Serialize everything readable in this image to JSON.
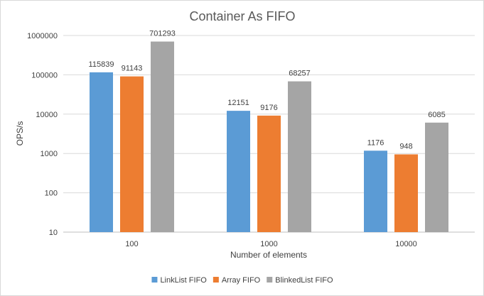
{
  "chart_data": {
    "type": "bar",
    "title": "Container As FIFO",
    "xlabel": "Number  of elements",
    "ylabel": "OPS/s",
    "yscale": "log",
    "ylim": [
      10,
      1000000
    ],
    "yticks": [
      "10",
      "100",
      "1000",
      "10000",
      "100000",
      "1000000"
    ],
    "categories": [
      "100",
      "1000",
      "10000"
    ],
    "series": [
      {
        "name": "LinkList FIFO",
        "color": "#5b9bd5",
        "values": [
          115839,
          12151,
          1176
        ],
        "labels": [
          "115839",
          "12151",
          "1176"
        ]
      },
      {
        "name": "Array FIFO",
        "color": "#ed7d31",
        "values": [
          91143,
          9176,
          948
        ],
        "labels": [
          "91143",
          "9176",
          "948"
        ]
      },
      {
        "name": "BlinkedList FIFO",
        "color": "#a5a5a5",
        "values": [
          701293,
          68257,
          6085
        ],
        "labels": [
          "701293",
          "68257",
          "6085"
        ]
      }
    ],
    "grid": true,
    "legend_position": "bottom"
  }
}
